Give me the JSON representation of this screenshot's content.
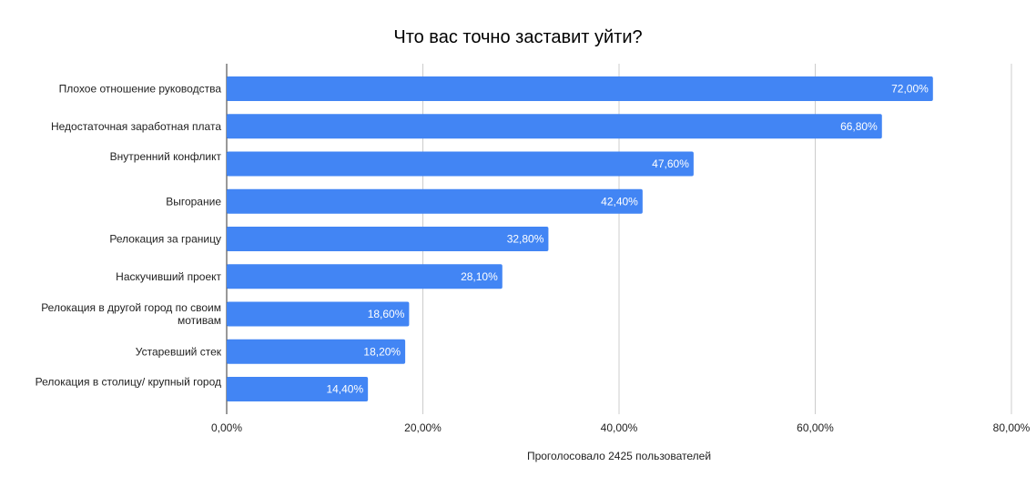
{
  "chart_data": {
    "type": "bar",
    "orientation": "horizontal",
    "title": "Что вас точно заставит уйти?",
    "xlabel": "Проголосовало 2425 пользователей",
    "ylabel": "",
    "categories": [
      "Плохое отношение руководства",
      "Недостаточная заработная плата",
      "Внутренний конфликт",
      "Выгорание",
      "Релокация за границу",
      "Наскучивший проект",
      "Релокация в другой город по своим мотивам",
      "Устаревший стек",
      "Релокация в столицу/ крупный город"
    ],
    "category_lines": [
      [
        "Плохое отношение руководства"
      ],
      [
        "Недостаточная заработная плата"
      ],
      [
        "Внутренний конфликт"
      ],
      [
        "Выгорание"
      ],
      [
        "Релокация за границу"
      ],
      [
        "Наскучивший проект"
      ],
      [
        "Релокация в другой город по своим",
        "мотивам"
      ],
      [
        "Устаревший стек"
      ],
      [
        "Релокация в столицу/ крупный город"
      ]
    ],
    "values": [
      72.0,
      66.8,
      47.6,
      42.4,
      32.8,
      28.1,
      18.6,
      18.2,
      14.4
    ],
    "data_labels": [
      "72,00%",
      "66,80%",
      "47,60%",
      "42,40%",
      "32,80%",
      "28,10%",
      "18,60%",
      "18,20%",
      "14,40%"
    ],
    "xlim": [
      0,
      80
    ],
    "x_ticks": [
      0,
      20,
      40,
      60,
      80
    ],
    "x_tick_labels": [
      "0,00%",
      "20,00%",
      "40,00%",
      "60,00%",
      "80,00%"
    ],
    "grid": true,
    "legend": "none",
    "bar_color": "#4285f4",
    "grid_color": "#cccccc",
    "axis_color": "#333333"
  }
}
